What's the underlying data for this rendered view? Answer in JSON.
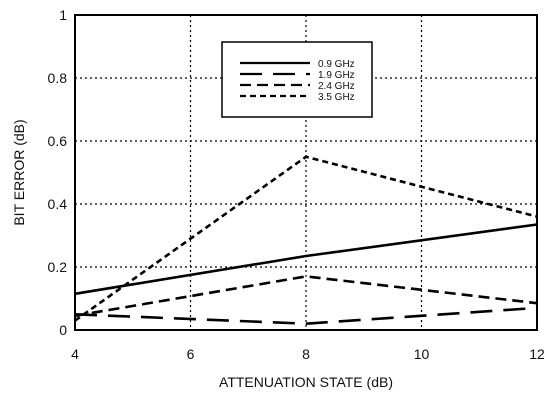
{
  "chart_data": {
    "type": "line",
    "xlabel": "ATTENUATION STATE (dB)",
    "ylabel": "BIT ERROR (dB)",
    "xlim": [
      4,
      12
    ],
    "ylim": [
      0,
      1
    ],
    "x_ticks": [
      4,
      6,
      8,
      10,
      12
    ],
    "y_ticks": [
      0,
      0.2,
      0.4,
      0.6,
      0.8,
      1
    ],
    "x_tick_labels": [
      "4",
      "6",
      "8",
      "10",
      "12"
    ],
    "y_tick_labels": [
      "0",
      "0.2",
      "0.4",
      "0.6",
      "0.8",
      "1"
    ],
    "grid": true,
    "legend_position": "top-center",
    "series": [
      {
        "name": "0.9 GHz",
        "dash": "solid",
        "x": [
          4,
          8,
          12
        ],
        "y": [
          0.115,
          0.235,
          0.335
        ]
      },
      {
        "name": "1.9 GHz",
        "dash": "long-dash",
        "x": [
          4,
          8,
          12
        ],
        "y": [
          0.05,
          0.02,
          0.07
        ]
      },
      {
        "name": "2.4 GHz",
        "dash": "medium-dash",
        "x": [
          4,
          8,
          12
        ],
        "y": [
          0.045,
          0.17,
          0.085
        ]
      },
      {
        "name": "3.5 GHz",
        "dash": "short-dash",
        "x": [
          4,
          8,
          12
        ],
        "y": [
          0.03,
          0.55,
          0.36
        ]
      }
    ]
  }
}
